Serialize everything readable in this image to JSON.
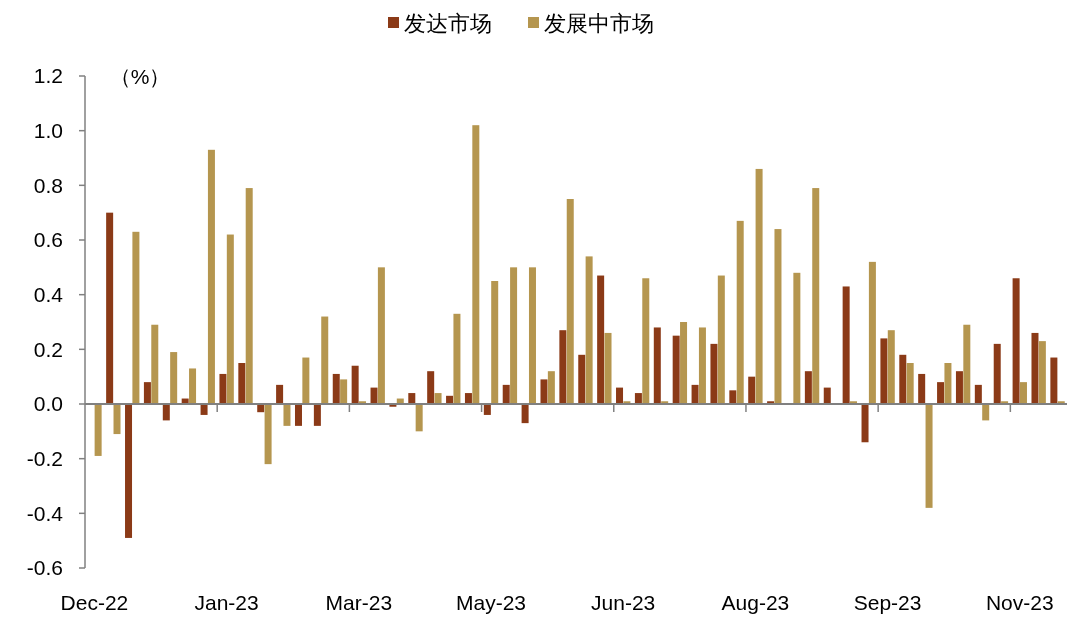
{
  "chart_data": {
    "type": "bar",
    "ylabel": "（%）",
    "legend": "top",
    "categories": [
      "Dec-22",
      null,
      null,
      null,
      null,
      null,
      null,
      "Jan-23",
      null,
      null,
      null,
      null,
      null,
      null,
      "Mar-23",
      null,
      null,
      null,
      null,
      null,
      null,
      "May-23",
      null,
      null,
      null,
      null,
      null,
      null,
      "Jun-23",
      null,
      null,
      null,
      null,
      null,
      null,
      "Aug-23",
      null,
      null,
      null,
      null,
      null,
      null,
      "Sep-23",
      null,
      null,
      null,
      null,
      null,
      null,
      "Nov-23",
      null,
      null
    ],
    "ylim": [
      -0.6,
      1.2
    ],
    "yticks": [
      -0.6,
      -0.4,
      -0.2,
      {
        "value": 0,
        "label": "0.0"
      },
      0.2,
      0.4,
      0.6,
      0.8,
      {
        "value": 1,
        "label": "1.0"
      },
      1.2
    ],
    "series": [
      {
        "name": "发达市场",
        "color": "#8b3a17",
        "values": [
          0,
          0.7,
          -0.49,
          0.08,
          -0.06,
          0.02,
          -0.04,
          0.11,
          0.15,
          -0.03,
          0.07,
          -0.08,
          -0.08,
          0.11,
          0.14,
          0.06,
          -0.01,
          0.04,
          0.12,
          0.03,
          0.04,
          -0.04,
          0.07,
          -0.07,
          0.09,
          0.27,
          0.18,
          0.47,
          0.06,
          0.04,
          0.28,
          0.25,
          0.07,
          0.22,
          0.05,
          0.1,
          0.01,
          0,
          0.12,
          0.06,
          0.43,
          -0.14,
          0.24,
          0.18,
          0.11,
          0.08,
          0.12,
          0.07,
          0.22,
          0.46,
          0.26,
          0.17
        ]
      },
      {
        "name": "发展中市场",
        "color": "#b5964f",
        "values": [
          -0.19,
          -0.11,
          0.63,
          0.29,
          0.19,
          0.13,
          0.93,
          0.62,
          0.79,
          -0.22,
          -0.08,
          0.17,
          0.32,
          0.09,
          0.01,
          0.5,
          0.02,
          -0.1,
          0.04,
          0.33,
          1.02,
          0.45,
          0.5,
          0.5,
          0.12,
          0.75,
          0.54,
          0.26,
          0.01,
          0.46,
          0.01,
          0.3,
          0.28,
          0.47,
          0.67,
          0.86,
          0.64,
          0.48,
          0.79,
          0,
          0.01,
          0.52,
          0.27,
          0.15,
          -0.38,
          0.15,
          0.29,
          -0.06,
          0.01,
          0.08,
          0.23,
          0.01
        ]
      }
    ]
  }
}
